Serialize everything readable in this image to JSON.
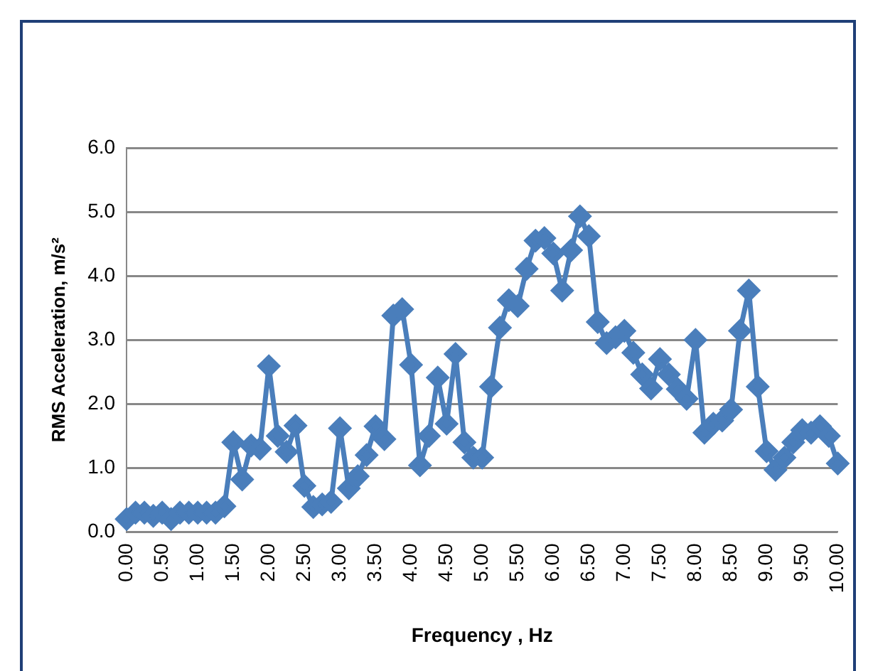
{
  "chart_data": {
    "type": "line",
    "xlabel": "Frequency , Hz",
    "ylabel": "RMS Acceleration, m/s²",
    "categories": [
      "0.00",
      null,
      null,
      null,
      "0.50",
      null,
      null,
      null,
      "1.00",
      null,
      null,
      null,
      "1.50",
      null,
      null,
      null,
      "2.00",
      null,
      null,
      null,
      "2.50",
      null,
      null,
      null,
      "3.00",
      null,
      null,
      null,
      "3.50",
      null,
      null,
      null,
      "4.00",
      null,
      null,
      null,
      "4.50",
      null,
      null,
      null,
      "5.00",
      null,
      null,
      null,
      "5.50",
      null,
      null,
      null,
      "6.00",
      null,
      null,
      null,
      "6.50",
      null,
      null,
      null,
      "7.00",
      null,
      null,
      null,
      "7.50",
      null,
      null,
      null,
      "8.00",
      null,
      null,
      null,
      "8.50",
      null,
      null,
      null,
      "9.00",
      null,
      null,
      null,
      "9.50",
      null,
      null,
      null,
      "10.00"
    ],
    "series": [
      {
        "color": "#4a7ebb",
        "values": [
          0.2,
          0.3,
          0.3,
          0.25,
          0.3,
          0.2,
          0.3,
          0.3,
          0.3,
          0.3,
          0.3,
          0.4,
          1.4,
          0.82,
          1.35,
          1.3,
          2.59,
          1.5,
          1.25,
          1.66,
          0.72,
          0.39,
          0.43,
          0.47,
          1.62,
          0.68,
          0.87,
          1.2,
          1.65,
          1.45,
          3.38,
          3.48,
          2.61,
          1.04,
          1.5,
          2.41,
          1.69,
          2.78,
          1.4,
          1.16,
          1.16,
          2.27,
          3.19,
          3.62,
          3.53,
          4.11,
          4.55,
          4.59,
          4.35,
          3.77,
          4.4,
          4.93,
          4.62,
          3.28,
          2.95,
          3.04,
          3.14,
          2.8,
          2.46,
          2.24,
          2.7,
          2.46,
          2.23,
          2.08,
          3.0,
          1.55,
          1.69,
          1.74,
          1.91,
          3.14,
          3.77,
          2.27,
          1.26,
          0.97,
          1.16,
          1.4,
          1.59,
          1.55,
          1.65,
          1.5,
          1.07
        ]
      }
    ],
    "ylim": [
      0,
      6
    ],
    "yticks": [
      {
        "value": 0,
        "label": "0.0"
      },
      {
        "value": 1,
        "label": "1.0"
      },
      {
        "value": 2,
        "label": "2.0"
      },
      {
        "value": 3,
        "label": "3.0"
      },
      {
        "value": 4,
        "label": "4.0"
      },
      {
        "value": 5,
        "label": "5.0"
      },
      {
        "value": 6,
        "label": "6.0"
      }
    ],
    "grid": "y",
    "legend": false,
    "marker": "diamond",
    "line_style": "solid"
  }
}
